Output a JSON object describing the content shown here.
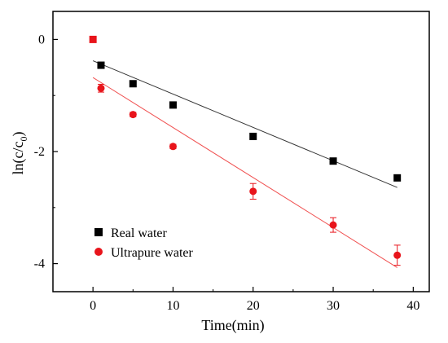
{
  "chart_data": {
    "type": "scatter",
    "title": "",
    "xlabel": "Time(min)",
    "ylabel_main": "ln(c/c",
    "ylabel_sub": "0",
    "ylabel_tail": ")",
    "xlim": [
      -5,
      42
    ],
    "ylim": [
      -4.5,
      0.5
    ],
    "xticks": [
      0,
      10,
      20,
      30,
      40
    ],
    "xtick_labels": [
      "0",
      "10",
      "20",
      "30",
      "40"
    ],
    "yticks": [
      0,
      -2,
      -4
    ],
    "ytick_labels": [
      "0",
      "-2",
      "-4"
    ],
    "grid": false,
    "legend_position": "bottom-left",
    "series": [
      {
        "name": "Real water",
        "marker": "square",
        "color": "#000000",
        "x": [
          0,
          1,
          5,
          10,
          20,
          30,
          38
        ],
        "y": [
          0,
          -0.46,
          -0.79,
          -1.17,
          -1.73,
          -2.17,
          -2.47
        ],
        "first_point_color": "#e8141b",
        "fit": {
          "x": [
            0,
            38
          ],
          "y": [
            -0.38,
            -2.64
          ],
          "color": "#333333"
        }
      },
      {
        "name": "Ultrapure water",
        "marker": "circle",
        "color": "#e8141b",
        "x": [
          1,
          5,
          10,
          20,
          30,
          38
        ],
        "y": [
          -0.87,
          -1.34,
          -1.91,
          -2.71,
          -3.31,
          -3.85
        ],
        "yerr": [
          0.07,
          0.04,
          0.04,
          0.14,
          0.13,
          0.18
        ],
        "fit": {
          "x": [
            0,
            38
          ],
          "y": [
            -0.68,
            -4.07
          ],
          "color": "#f05050"
        }
      }
    ]
  }
}
